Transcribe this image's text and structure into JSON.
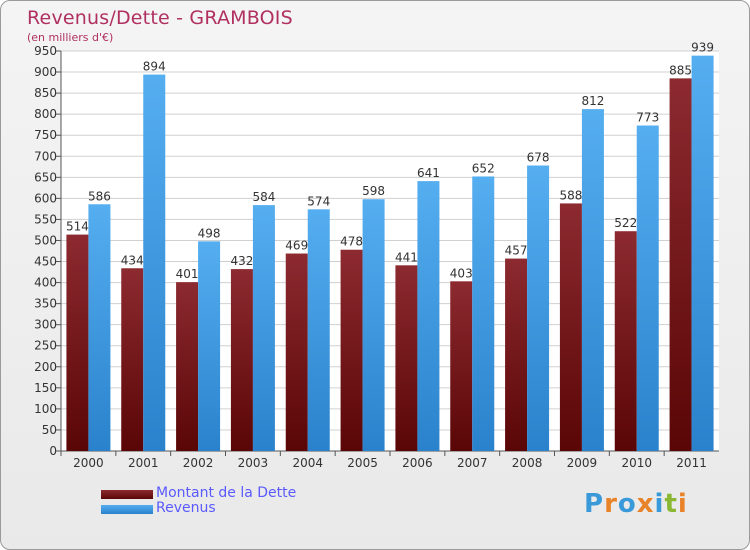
{
  "chart_data": {
    "type": "bar",
    "title": "Revenus/Dette - GRAMBOIS",
    "subtitle": "(en milliers d'€)",
    "categories": [
      "2000",
      "2001",
      "2002",
      "2003",
      "2004",
      "2005",
      "2006",
      "2007",
      "2008",
      "2009",
      "2010",
      "2011"
    ],
    "series": [
      {
        "name": "Montant de la Dette",
        "color": "#7a1418",
        "values": [
          514,
          434,
          401,
          432,
          469,
          478,
          441,
          403,
          457,
          588,
          522,
          885
        ]
      },
      {
        "name": "Revenus",
        "color": "#3d9be9",
        "values": [
          586,
          894,
          498,
          584,
          574,
          598,
          641,
          652,
          678,
          812,
          773,
          939
        ]
      }
    ],
    "ylim": [
      0,
      950
    ],
    "yticks": [
      0,
      50,
      100,
      150,
      200,
      250,
      300,
      350,
      400,
      450,
      500,
      550,
      600,
      650,
      700,
      750,
      800,
      850,
      900,
      950
    ],
    "grid": true,
    "legend_position": "bottom-left"
  },
  "logo": {
    "text": "Proxiti",
    "letters": [
      {
        "ch": "P",
        "color": "#3a9ad9"
      },
      {
        "ch": "r",
        "color": "#e8832a"
      },
      {
        "ch": "o",
        "color": "#3a9ad9"
      },
      {
        "ch": "x",
        "color": "#e8832a"
      },
      {
        "ch": "i",
        "color": "#3a9ad9"
      },
      {
        "ch": "t",
        "color": "#8ab832"
      },
      {
        "ch": "i",
        "color": "#e8832a"
      }
    ]
  }
}
